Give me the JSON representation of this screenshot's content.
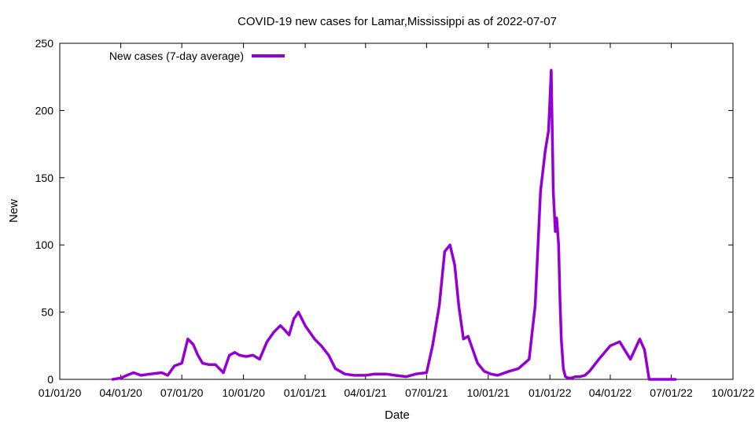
{
  "chart_data": {
    "type": "line",
    "title": "COVID-19 new cases for Lamar,Mississippi as of 2022-07-07",
    "xlabel": "Date",
    "ylabel": "New",
    "xlim": [
      "2020-01-01",
      "2022-10-01"
    ],
    "ylim": [
      0,
      250
    ],
    "x_ticks": [
      "01/01/20",
      "04/01/20",
      "07/01/20",
      "10/01/20",
      "01/01/21",
      "04/01/21",
      "07/01/21",
      "10/01/21",
      "01/01/22",
      "04/01/22",
      "07/01/22",
      "10/01/22"
    ],
    "y_ticks": [
      "0",
      "50",
      "100",
      "150",
      "200",
      "250"
    ],
    "grid": false,
    "legend_position": "top-left",
    "series": [
      {
        "name": "New cases (7-day average)",
        "color": "#9400d3",
        "x": [
          "2020-03-20",
          "2020-04-01",
          "2020-04-10",
          "2020-04-20",
          "2020-05-01",
          "2020-05-15",
          "2020-06-01",
          "2020-06-10",
          "2020-06-20",
          "2020-07-01",
          "2020-07-10",
          "2020-07-18",
          "2020-07-25",
          "2020-08-01",
          "2020-08-10",
          "2020-08-20",
          "2020-09-01",
          "2020-09-10",
          "2020-09-18",
          "2020-09-25",
          "2020-10-05",
          "2020-10-15",
          "2020-10-25",
          "2020-11-05",
          "2020-11-15",
          "2020-11-25",
          "2020-12-01",
          "2020-12-08",
          "2020-12-15",
          "2020-12-22",
          "2021-01-01",
          "2021-01-08",
          "2021-01-15",
          "2021-01-25",
          "2021-02-05",
          "2021-02-15",
          "2021-03-01",
          "2021-03-15",
          "2021-04-01",
          "2021-04-15",
          "2021-05-01",
          "2021-05-15",
          "2021-06-01",
          "2021-06-15",
          "2021-07-01",
          "2021-07-10",
          "2021-07-20",
          "2021-07-28",
          "2021-08-05",
          "2021-08-12",
          "2021-08-18",
          "2021-08-25",
          "2021-09-01",
          "2021-09-08",
          "2021-09-15",
          "2021-09-25",
          "2021-10-05",
          "2021-10-15",
          "2021-11-01",
          "2021-11-15",
          "2021-12-01",
          "2021-12-10",
          "2021-12-18",
          "2021-12-25",
          "2021-12-30",
          "2022-01-03",
          "2022-01-06",
          "2022-01-09",
          "2022-01-11",
          "2022-01-14",
          "2022-01-16",
          "2022-01-18",
          "2022-01-21",
          "2022-01-24",
          "2022-01-28",
          "2022-02-02",
          "2022-02-08",
          "2022-02-15",
          "2022-02-22",
          "2022-03-01",
          "2022-03-15",
          "2022-04-01",
          "2022-04-15",
          "2022-05-01",
          "2022-05-15",
          "2022-05-22",
          "2022-05-29",
          "2022-06-05",
          "2022-06-12",
          "2022-06-19",
          "2022-06-26",
          "2022-07-03",
          "2022-07-07"
        ],
        "values": [
          0,
          1,
          3,
          5,
          3,
          4,
          5,
          3,
          10,
          12,
          30,
          26,
          18,
          12,
          11,
          11,
          5,
          18,
          20,
          18,
          17,
          18,
          15,
          28,
          35,
          40,
          37,
          33,
          45,
          50,
          40,
          35,
          30,
          25,
          18,
          8,
          4,
          3,
          3,
          4,
          4,
          3,
          2,
          4,
          5,
          25,
          55,
          95,
          100,
          85,
          55,
          30,
          32,
          22,
          12,
          6,
          4,
          3,
          6,
          8,
          15,
          55,
          140,
          170,
          185,
          230,
          140,
          110,
          120,
          100,
          60,
          30,
          8,
          2,
          1,
          1,
          2,
          2,
          3,
          6,
          15,
          25,
          28,
          15,
          30,
          22,
          0,
          0,
          0,
          0,
          0,
          0,
          0
        ]
      }
    ]
  }
}
